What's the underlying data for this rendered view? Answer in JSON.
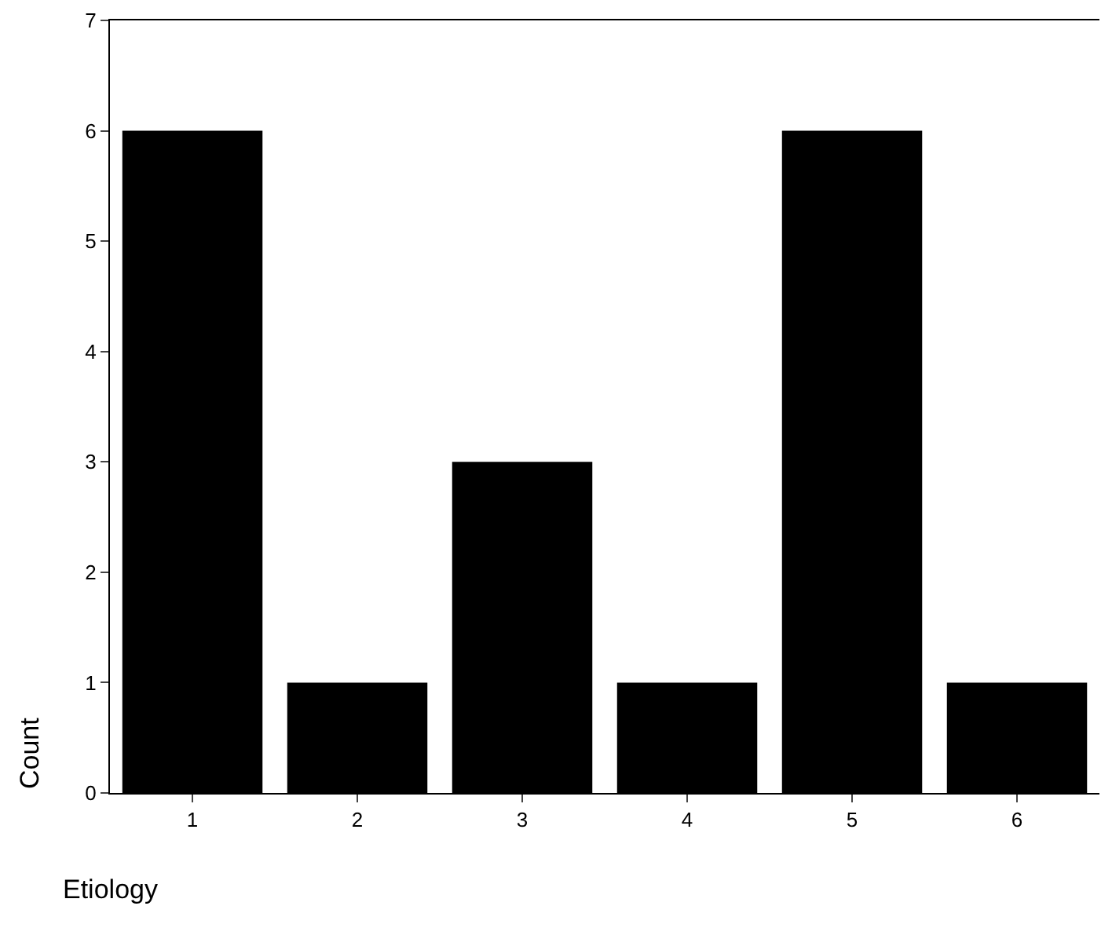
{
  "chart_data": {
    "type": "bar",
    "xlabel": "Etiology",
    "ylabel": "Count",
    "categories": [
      "1",
      "2",
      "3",
      "4",
      "5",
      "6"
    ],
    "values": [
      6,
      1,
      3,
      1,
      6,
      1
    ],
    "color": "#000000",
    "ylim": [
      0,
      7
    ],
    "yticks": [
      0,
      1,
      2,
      3,
      4,
      5,
      6,
      7
    ],
    "grid": false
  }
}
